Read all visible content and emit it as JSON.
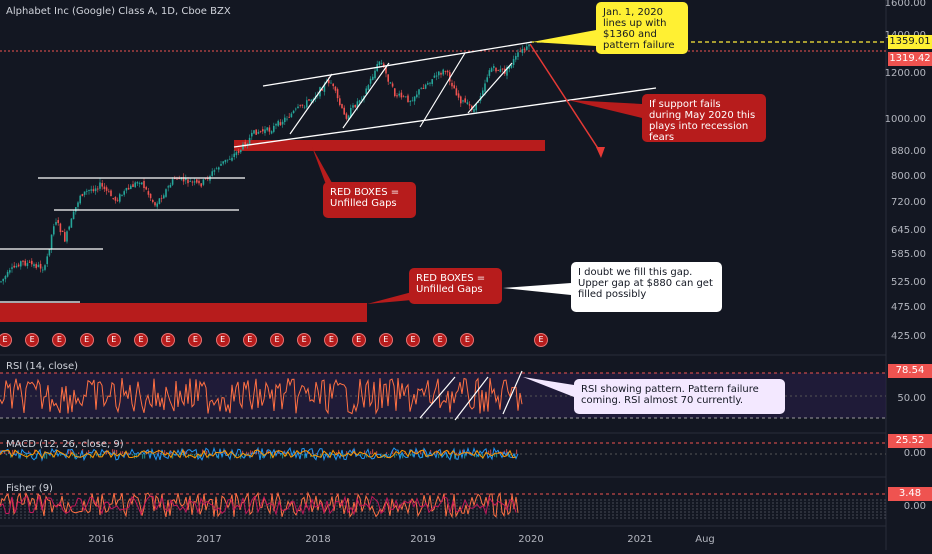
{
  "chart": {
    "title": "Alphabet Inc (Google) Class A, 1D, Cboe BZX",
    "price_axis": [
      "1600.00",
      "1400.00",
      "1200.00",
      "1000.00",
      "880.00",
      "800.00",
      "720.00",
      "645.00",
      "585.00",
      "525.00",
      "475.00",
      "425.00"
    ],
    "price_tags": {
      "dashed": "1359.01",
      "current": "1319.42"
    },
    "time_axis": [
      "2016",
      "2017",
      "2018",
      "2019",
      "2020",
      "2021",
      "Aug"
    ],
    "earnings_marker": "E",
    "earnings_count": 18
  },
  "panes": {
    "rsi": {
      "title": "RSI (14, close)",
      "value_tag": "78.54",
      "tick": "50.00"
    },
    "macd": {
      "title": "MACD (12, 26, close, 9)",
      "value_tag": "25.52",
      "tick": "0.00"
    },
    "fisher": {
      "title": "Fisher (9)",
      "value_tag": "3.48",
      "tick": "0.00"
    }
  },
  "annotations": {
    "jan_callout": "Jan. 1, 2020\nlines up with\n$1360 and\npattern failure",
    "support_callout": "If support fails\nduring May 2020 this\nplays into recession\nfears",
    "red_boxes_1": "RED BOXES =\nUnfilled Gaps",
    "red_boxes_2": "RED BOXES =\nUnfilled Gaps",
    "gap_doubt": "I doubt we fill this gap.\nUpper gap at $880 can get\nfilled possibly",
    "rsi_callout": "RSI showing pattern.  Pattern failure\ncoming.  RSI almost 70 currently."
  },
  "colors": {
    "background": "#131722",
    "candle_up": "#26a69a",
    "candle_down": "#ef5350",
    "gap_box": "#b71c1c",
    "callout_yellow": "#fff033",
    "callout_red": "#b71c1c",
    "callout_white": "#ffffff",
    "callout_lilac": "#f3e8ff",
    "rsi_line": "#ff7043",
    "dashed_level": "#ffeb3b"
  }
}
